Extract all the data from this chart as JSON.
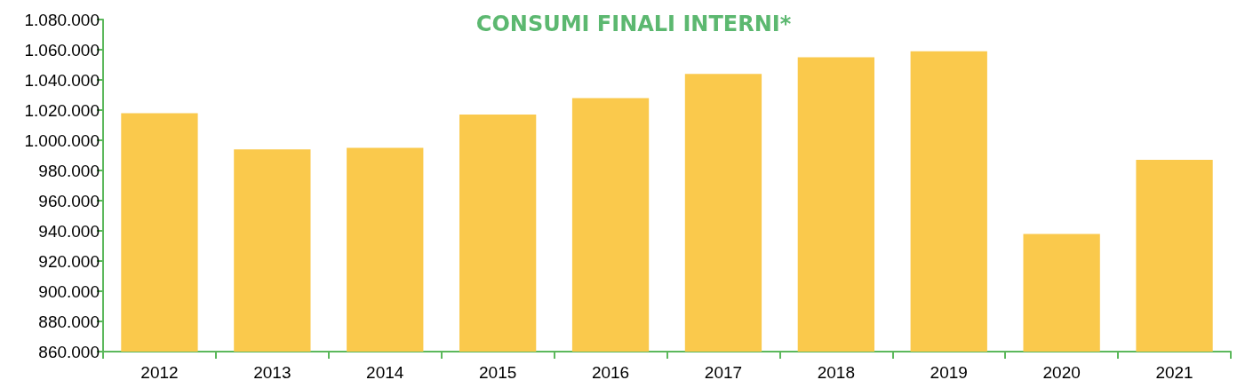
{
  "chart_data": {
    "type": "bar",
    "title": "CONSUMI FINALI INTERNI*",
    "categories": [
      "2012",
      "2013",
      "2014",
      "2015",
      "2016",
      "2017",
      "2018",
      "2019",
      "2020",
      "2021"
    ],
    "values": [
      1018000,
      994000,
      995000,
      1017000,
      1028000,
      1044000,
      1055000,
      1059000,
      938000,
      987000
    ],
    "color": "#fac94c",
    "ylim": [
      860000,
      1080000
    ],
    "yticks": [
      {
        "value": 860000,
        "label": "860.000"
      },
      {
        "value": 880000,
        "label": "880.000"
      },
      {
        "value": 900000,
        "label": "900.000"
      },
      {
        "value": 920000,
        "label": "920.000"
      },
      {
        "value": 940000,
        "label": "940.000"
      },
      {
        "value": 960000,
        "label": "960.000"
      },
      {
        "value": 980000,
        "label": "980.000"
      },
      {
        "value": 1000000,
        "label": "1.000.000"
      },
      {
        "value": 1020000,
        "label": "1.020.000"
      },
      {
        "value": 1040000,
        "label": "1.040.000"
      },
      {
        "value": 1060000,
        "label": "1.060.000"
      },
      {
        "value": 1080000,
        "label": "1.080.000"
      }
    ],
    "grid": false
  }
}
